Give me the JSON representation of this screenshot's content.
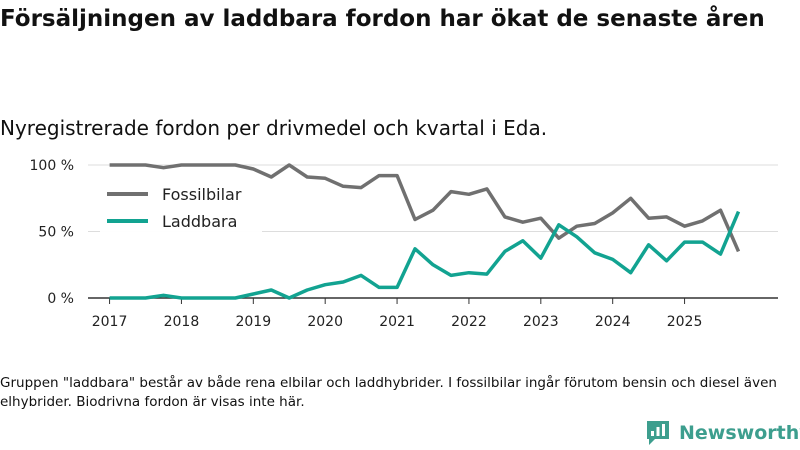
{
  "header": {
    "title": "Försäljningen av laddbara fordon har ökat de senaste åren",
    "subtitle": "Nyregistrerade fordon per drivmedel och kvartal i Eda."
  },
  "footnote": "Gruppen \"laddbara\" består av både rena elbilar och laddhybrider. I fossilbilar ingår förutom bensin och diesel även elhybrider. Biodrivna fordon är visas inte här.",
  "brand": {
    "name": "Newsworthy"
  },
  "colors": {
    "fossil": "#707070",
    "laddbara": "#12a391",
    "grid": "#dddddd",
    "axis": "#333333",
    "brand": "#3d9e8e"
  },
  "chart_data": {
    "type": "line",
    "title": "Nyregistrerade fordon per drivmedel och kvartal i Eda.",
    "xlabel": "",
    "ylabel": "",
    "x_start": 2017.0,
    "x_step": 0.25,
    "xlim": [
      2016.7,
      2026.3
    ],
    "ylim": [
      0,
      100
    ],
    "y_ticks": [
      {
        "value": 0,
        "label": "0 %"
      },
      {
        "value": 50,
        "label": "50 %"
      },
      {
        "value": 100,
        "label": "100 %"
      }
    ],
    "x_ticks": [
      {
        "value": 2017,
        "label": "2017"
      },
      {
        "value": 2018,
        "label": "2018"
      },
      {
        "value": 2019,
        "label": "2019"
      },
      {
        "value": 2020,
        "label": "2020"
      },
      {
        "value": 2021,
        "label": "2021"
      },
      {
        "value": 2022,
        "label": "2022"
      },
      {
        "value": 2023,
        "label": "2023"
      },
      {
        "value": 2024,
        "label": "2024"
      },
      {
        "value": 2025,
        "label": "2025"
      }
    ],
    "legend": {
      "position": "top-left"
    },
    "series": [
      {
        "name": "Fossilbilar",
        "color": "#707070",
        "values": [
          100,
          100,
          100,
          98,
          100,
          100,
          100,
          100,
          97,
          91,
          100,
          91,
          90,
          84,
          83,
          92,
          92,
          59,
          66,
          80,
          78,
          82,
          61,
          57,
          60,
          45,
          54,
          56,
          64,
          75,
          60,
          61,
          54,
          58,
          66,
          35
        ]
      },
      {
        "name": "Laddbara",
        "color": "#12a391",
        "values": [
          0,
          0,
          0,
          2,
          0,
          0,
          0,
          0,
          3,
          6,
          0,
          6,
          10,
          12,
          17,
          8,
          8,
          37,
          25,
          17,
          19,
          18,
          35,
          43,
          30,
          55,
          46,
          34,
          29,
          19,
          40,
          28,
          42,
          42,
          33,
          65
        ]
      }
    ]
  }
}
